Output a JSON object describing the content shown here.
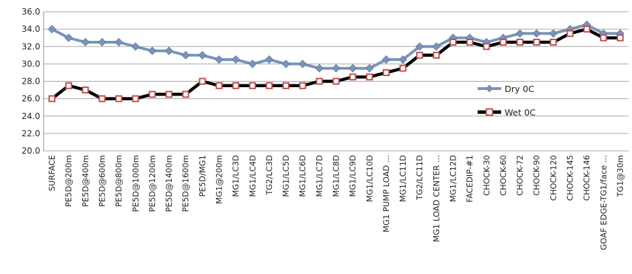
{
  "chart_data": {
    "type": "line",
    "categories": [
      "SURFACE",
      "PE5D@200m",
      "PE5D@400m",
      "PE5D@600m",
      "PE5D@800m",
      "PE5D@1000m",
      "PE5D@1200m",
      "PE5D@1400m",
      "PE5D@1600m",
      "PE5D/MG1",
      "MG1@200m",
      "MG1/LC3D",
      "MG1/LC4D",
      "TG2/LC3D",
      "MG1/LC5D",
      "MG1/LC6D",
      "MG1/LC7D",
      "MG1/LC8D",
      "MG1/LC9D",
      "MG1/LC10D",
      "MG1 PUMP LOAD ...",
      "MG1/LC11D",
      "TG2/LC11D",
      "MG1 LOAD CENTER ...",
      "MG1/LC12D",
      "FACEDIP-#1",
      "CHOCK-30",
      "CHOCK-60",
      "CHOCK-72",
      "CHOCK-90",
      "CHOCK-120",
      "CHOCK-145",
      "CHOCK-146",
      "GOAF EDGE-TG1/face ...",
      "TG1@30m"
    ],
    "series": [
      {
        "name": "Dry 0C",
        "color": "#7a93b8",
        "marker": "diamond",
        "values": [
          34.0,
          33.0,
          32.5,
          32.5,
          32.5,
          32.0,
          31.5,
          31.5,
          31.0,
          31.0,
          30.5,
          30.5,
          30.0,
          30.5,
          30.0,
          30.0,
          29.5,
          29.5,
          29.5,
          29.5,
          30.5,
          30.5,
          32.0,
          32.0,
          33.0,
          33.0,
          32.5,
          33.0,
          33.5,
          33.5,
          33.5,
          34.0,
          34.5,
          33.5,
          33.5
        ]
      },
      {
        "name": "Wet 0C",
        "color": "#000000",
        "marker_color": "#c0504d",
        "marker": "square",
        "values": [
          26.0,
          27.5,
          27.0,
          26.0,
          26.0,
          26.0,
          26.5,
          26.5,
          26.5,
          28.0,
          27.5,
          27.5,
          27.5,
          27.5,
          27.5,
          27.5,
          28.0,
          28.0,
          28.5,
          28.5,
          29.0,
          29.5,
          31.0,
          31.0,
          32.5,
          32.5,
          32.0,
          32.5,
          32.5,
          32.5,
          32.5,
          33.5,
          34.0,
          33.0,
          33.0
        ]
      }
    ],
    "y_ticks": [
      "36.0",
      "34.0",
      "32.0",
      "30.0",
      "28.0",
      "26.0",
      "24.0",
      "22.0",
      "20.0"
    ],
    "ylim": [
      20,
      36
    ],
    "y_step": 2,
    "grid": true,
    "legend_position": "right"
  }
}
